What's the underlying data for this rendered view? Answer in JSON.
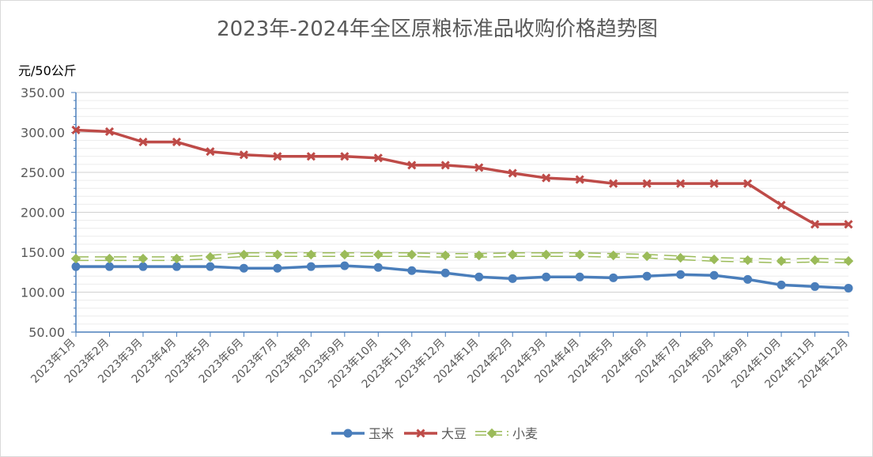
{
  "chart_data": {
    "type": "line",
    "title": "2023年-2024年全区原粮标准品收购价格趋势图",
    "y_unit_label": "元/50公斤",
    "ylim": [
      50,
      350
    ],
    "y_ticks": [
      "50.00",
      "100.00",
      "150.00",
      "200.00",
      "250.00",
      "300.00",
      "350.00"
    ],
    "grid": true,
    "legend_position": "bottom",
    "categories": [
      "2023年1月",
      "2023年2月",
      "2023年3月",
      "2023年4月",
      "2023年5月",
      "2023年6月",
      "2023年7月",
      "2023年8月",
      "2023年9月",
      "2023年10月",
      "2023年11月",
      "2023年12月",
      "2024年1月",
      "2024年2月",
      "2024年3月",
      "2024年4月",
      "2024年5月",
      "2024年6月",
      "2024年7月",
      "2024年8月",
      "2024年9月",
      "2024年10月",
      "2024年11月",
      "2024年12月"
    ],
    "series": [
      {
        "name": "玉米",
        "color": "#4a7ebb",
        "marker": "circle",
        "dashed": false,
        "values": [
          132,
          132,
          132,
          132,
          132,
          130,
          130,
          132,
          133,
          131,
          127,
          124,
          119,
          117,
          119,
          119,
          118,
          120,
          122,
          121,
          116,
          109,
          107,
          105
        ]
      },
      {
        "name": "大豆",
        "color": "#be4b48",
        "marker": "cross",
        "dashed": false,
        "values": [
          303,
          301,
          288,
          288,
          276,
          272,
          270,
          270,
          270,
          268,
          259,
          259,
          256,
          249,
          243,
          241,
          236,
          236,
          236,
          236,
          236,
          209,
          185,
          185
        ]
      },
      {
        "name": "小麦",
        "color": "#9bbb59",
        "marker": "diamond",
        "dashed": true,
        "values": [
          142,
          142,
          142,
          142,
          144,
          147,
          147,
          147,
          147,
          147,
          147,
          146,
          146,
          147,
          147,
          147,
          146,
          145,
          143,
          141,
          140,
          139,
          140,
          139
        ]
      }
    ]
  }
}
